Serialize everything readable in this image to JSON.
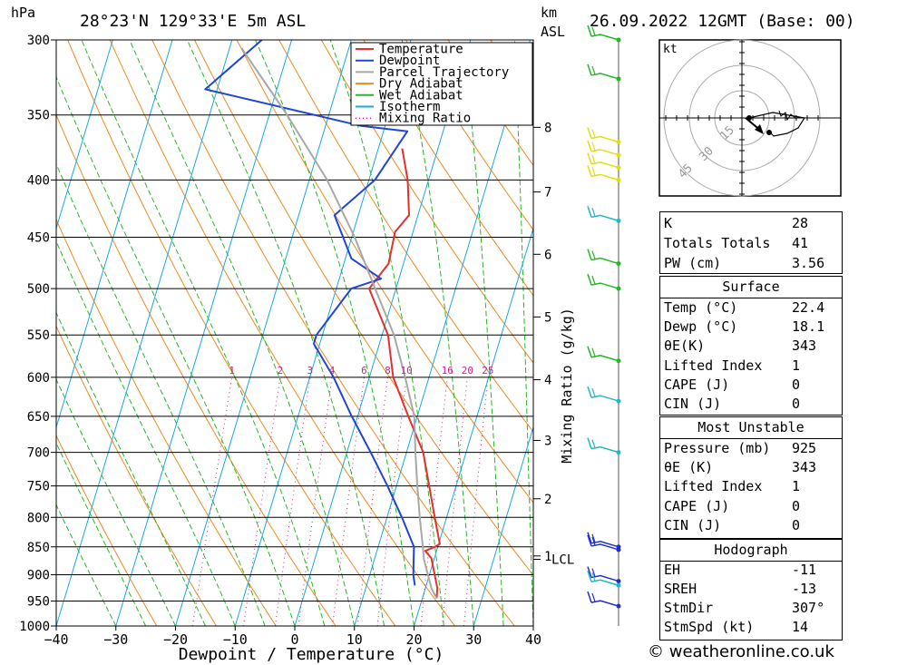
{
  "header": {
    "pressure_unit": "hPa",
    "location": "28°23'N 129°33'E 5m ASL",
    "height_unit_line1": "km",
    "height_unit_line2": "ASL",
    "datetime": "26.09.2022 12GMT (Base: 00)"
  },
  "chart_data": {
    "type": "skew-t log-p diagram",
    "xlabel": "Dewpoint / Temperature (°C)",
    "x_ticks": [
      -40,
      -30,
      -20,
      -10,
      0,
      10,
      20,
      30,
      40
    ],
    "xlim": [
      -40,
      40
    ],
    "ylabel": "hPa",
    "y_ticks": [
      300,
      350,
      400,
      450,
      500,
      550,
      600,
      650,
      700,
      750,
      800,
      850,
      900,
      950,
      1000
    ],
    "ylim": [
      1000,
      300
    ],
    "y_scale": "log (inverted)",
    "height_axis": {
      "label_lines": [
        "km",
        "ASL"
      ],
      "ticks": [
        {
          "label": "8",
          "p": 359
        },
        {
          "label": "7",
          "p": 410
        },
        {
          "label": "6",
          "p": 466
        },
        {
          "label": "5",
          "p": 530
        },
        {
          "label": "4",
          "p": 603
        },
        {
          "label": "3",
          "p": 683
        },
        {
          "label": "2",
          "p": 770
        },
        {
          "label": "1",
          "p": 866
        },
        {
          "label": "LCL",
          "p": 872
        }
      ]
    },
    "mixing_ratio_axis": {
      "label": "Mixing Ratio (g/kg)",
      "labels_at_p": 600,
      "values": [
        "1",
        "2",
        "3",
        "4",
        "6",
        "8",
        "10",
        "16",
        "20",
        "25"
      ]
    },
    "legend": {
      "placement": "top-center",
      "entries": [
        {
          "name": "Temperature",
          "color": "#e53030",
          "style": "solid"
        },
        {
          "name": "Dewpoint",
          "color": "#2046d6",
          "style": "solid"
        },
        {
          "name": "Parcel Trajectory",
          "color": "#a8a8a8",
          "style": "solid"
        },
        {
          "name": "Dry Adiabat",
          "color": "#f08a1e",
          "style": "solid"
        },
        {
          "name": "Wet Adiabat",
          "color": "#28b828",
          "style": "solid"
        },
        {
          "name": "Isotherm",
          "color": "#1aa8e6",
          "style": "solid"
        },
        {
          "name": "Mixing Ratio",
          "color": "#d0208c",
          "style": "dotted"
        }
      ]
    },
    "series": [
      {
        "name": "Temperature",
        "points": [
          {
            "p": 375,
            "t": -6.0
          },
          {
            "p": 400,
            "t": -3.5
          },
          {
            "p": 430,
            "t": -1.5
          },
          {
            "p": 445,
            "t": -3.0
          },
          {
            "p": 475,
            "t": -2.5
          },
          {
            "p": 500,
            "t": -4.5
          },
          {
            "p": 550,
            "t": 1.0
          },
          {
            "p": 600,
            "t": 4.0
          },
          {
            "p": 650,
            "t": 8.5
          },
          {
            "p": 700,
            "t": 12.8
          },
          {
            "p": 750,
            "t": 15.5
          },
          {
            "p": 800,
            "t": 18.0
          },
          {
            "p": 845,
            "t": 20.2
          },
          {
            "p": 850,
            "t": 19.5
          },
          {
            "p": 857,
            "t": 18.1
          },
          {
            "p": 870,
            "t": 19.5
          },
          {
            "p": 925,
            "t": 22.0
          },
          {
            "p": 945,
            "t": 22.4
          }
        ]
      },
      {
        "name": "Dewpoint",
        "points": [
          {
            "p": 300,
            "t": -35.0
          },
          {
            "p": 332,
            "t": -42.0
          },
          {
            "p": 358,
            "t": -14.0
          },
          {
            "p": 362,
            "t": -6.0
          },
          {
            "p": 400,
            "t": -9.0
          },
          {
            "p": 430,
            "t": -14.0
          },
          {
            "p": 470,
            "t": -9.0
          },
          {
            "p": 490,
            "t": -3.0
          },
          {
            "p": 500,
            "t": -7.5
          },
          {
            "p": 550,
            "t": -11.0
          },
          {
            "p": 560,
            "t": -11.0
          },
          {
            "p": 600,
            "t": -6.0
          },
          {
            "p": 650,
            "t": -1.0
          },
          {
            "p": 700,
            "t": 4.0
          },
          {
            "p": 750,
            "t": 8.5
          },
          {
            "p": 800,
            "t": 12.5
          },
          {
            "p": 850,
            "t": 16.0
          },
          {
            "p": 900,
            "t": 17.3
          },
          {
            "p": 920,
            "t": 18.1
          }
        ]
      },
      {
        "name": "Parcel Trajectory",
        "points": [
          {
            "p": 305,
            "t": -38.0
          },
          {
            "p": 350,
            "t": -27.0
          },
          {
            "p": 400,
            "t": -17.0
          },
          {
            "p": 450,
            "t": -9.5
          },
          {
            "p": 500,
            "t": -3.5
          },
          {
            "p": 550,
            "t": 2.0
          },
          {
            "p": 600,
            "t": 6.0
          },
          {
            "p": 650,
            "t": 9.5
          },
          {
            "p": 700,
            "t": 11.5
          },
          {
            "p": 750,
            "t": 13.5
          },
          {
            "p": 800,
            "t": 15.5
          },
          {
            "p": 850,
            "t": 17.5
          },
          {
            "p": 872,
            "t": 18.3
          },
          {
            "p": 925,
            "t": 21.0
          },
          {
            "p": 945,
            "t": 22.4
          }
        ]
      }
    ]
  },
  "hodograph": {
    "unit": "kt",
    "ring_labels": [
      "15",
      "30",
      "45"
    ]
  },
  "wind_profile": {
    "levels_hpa": [
      300,
      325,
      370,
      380,
      390,
      400,
      435,
      475,
      500,
      580,
      630,
      700,
      850,
      855,
      912,
      920,
      960
    ]
  },
  "indices": {
    "rows": [
      {
        "label": "K",
        "value": "28"
      },
      {
        "label": "Totals Totals",
        "value": "41"
      },
      {
        "label": "PW (cm)",
        "value": "3.56"
      }
    ]
  },
  "surface": {
    "title": "Surface",
    "rows": [
      {
        "label": "Temp (°C)",
        "value": "22.4"
      },
      {
        "label": "Dewp (°C)",
        "value": "18.1"
      },
      {
        "label": "θE(K)",
        "value": "343"
      },
      {
        "label": "Lifted Index",
        "value": "1"
      },
      {
        "label": "CAPE (J)",
        "value": "0"
      },
      {
        "label": "CIN (J)",
        "value": "0"
      }
    ]
  },
  "most_unstable": {
    "title": "Most Unstable",
    "rows": [
      {
        "label": "Pressure (mb)",
        "value": "925"
      },
      {
        "label": "θE (K)",
        "value": "343"
      },
      {
        "label": "Lifted Index",
        "value": "1"
      },
      {
        "label": "CAPE (J)",
        "value": "0"
      },
      {
        "label": "CIN (J)",
        "value": "0"
      }
    ]
  },
  "hodograph_table": {
    "title": "Hodograph",
    "rows": [
      {
        "label": "EH",
        "value": "-11"
      },
      {
        "label": "SREH",
        "value": "-13"
      },
      {
        "label": "StmDir",
        "value": "307°"
      },
      {
        "label": "StmSpd (kt)",
        "value": "14"
      }
    ]
  },
  "footer": {
    "credit": "© weatheronline.co.uk"
  }
}
